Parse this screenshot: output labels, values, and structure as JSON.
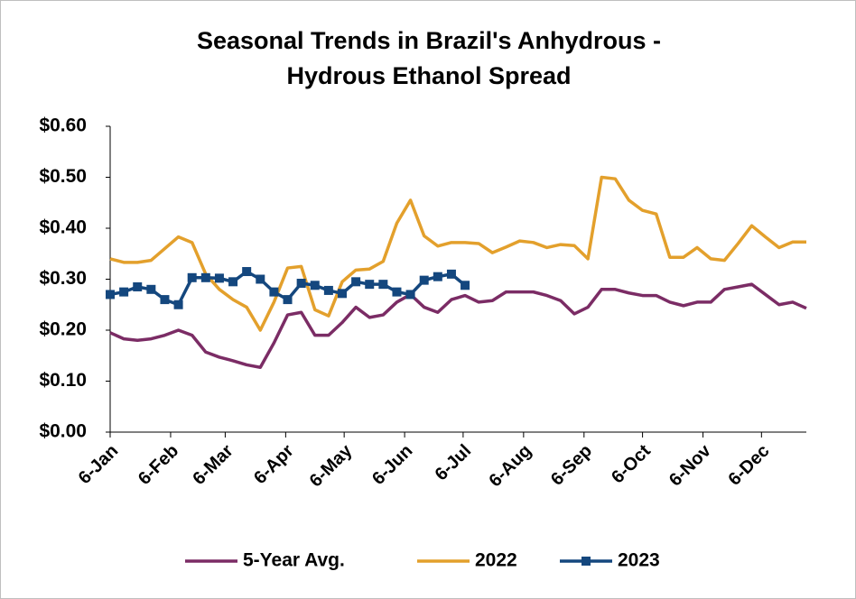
{
  "chart_data": {
    "type": "line",
    "title": [
      "Seasonal Trends in Brazil's Anhydrous -",
      "Hydrous Ethanol Spread"
    ],
    "x": [
      0,
      7,
      14,
      21,
      28,
      35,
      42,
      49,
      56,
      63,
      70,
      77,
      84,
      91,
      98,
      105,
      112,
      119,
      126,
      133,
      140,
      147,
      154,
      161,
      168,
      175,
      182,
      189,
      196,
      203,
      210,
      217,
      224,
      231,
      238,
      245,
      252,
      259,
      266,
      273,
      280,
      287,
      294,
      301,
      308,
      315,
      322,
      329,
      336,
      343,
      350,
      357
    ],
    "xlim": [
      0,
      357
    ],
    "xticks": [
      {
        "value": 0,
        "label": "6-Jan"
      },
      {
        "value": 31,
        "label": "6-Feb"
      },
      {
        "value": 59,
        "label": "6-Mar"
      },
      {
        "value": 90,
        "label": "6-Apr"
      },
      {
        "value": 120,
        "label": "6-May"
      },
      {
        "value": 151,
        "label": "6-Jun"
      },
      {
        "value": 181,
        "label": "6-Jul"
      },
      {
        "value": 212,
        "label": "6-Aug"
      },
      {
        "value": 243,
        "label": "6-Sep"
      },
      {
        "value": 273,
        "label": "6-Oct"
      },
      {
        "value": 304,
        "label": "6-Nov"
      },
      {
        "value": 334,
        "label": "6-Dec"
      }
    ],
    "ylim": [
      0,
      0.6
    ],
    "yticks": [
      {
        "value": 0,
        "label": "$0.00"
      },
      {
        "value": 0.1,
        "label": "$0.10"
      },
      {
        "value": 0.2,
        "label": "$0.20"
      },
      {
        "value": 0.3,
        "label": "$0.30"
      },
      {
        "value": 0.4,
        "label": "$0.40"
      },
      {
        "value": 0.5,
        "label": "$0.50"
      },
      {
        "value": 0.6,
        "label": "$0.60"
      }
    ],
    "grid": false,
    "legend": "bottom",
    "series": [
      {
        "name": "5-Year Avg.",
        "color": "#7b2c65",
        "marker": false,
        "values": [
          0.195,
          0.183,
          0.18,
          0.183,
          0.19,
          0.2,
          0.19,
          0.157,
          0.147,
          0.14,
          0.132,
          0.127,
          0.175,
          0.23,
          0.235,
          0.19,
          0.19,
          0.215,
          0.245,
          0.225,
          0.23,
          0.255,
          0.27,
          0.245,
          0.235,
          0.26,
          0.268,
          0.255,
          0.258,
          0.275,
          0.275,
          0.275,
          0.268,
          0.258,
          0.232,
          0.245,
          0.28,
          0.28,
          0.273,
          0.268,
          0.268,
          0.255,
          0.248,
          0.255,
          0.255,
          0.28,
          0.285,
          0.29,
          0.27,
          0.25,
          0.255,
          0.243
        ]
      },
      {
        "name": "2022",
        "color": "#e3a02c",
        "marker": false,
        "values": [
          0.34,
          0.333,
          0.333,
          0.337,
          0.36,
          0.383,
          0.372,
          0.31,
          0.28,
          0.26,
          0.245,
          0.2,
          0.255,
          0.322,
          0.325,
          0.24,
          0.228,
          0.295,
          0.318,
          0.32,
          0.335,
          0.41,
          0.455,
          0.385,
          0.365,
          0.372,
          0.372,
          0.37,
          0.352,
          0.363,
          0.375,
          0.372,
          0.362,
          0.368,
          0.366,
          0.34,
          0.5,
          0.497,
          0.455,
          0.435,
          0.428,
          0.343,
          0.343,
          0.362,
          0.34,
          0.337,
          0.37,
          0.405,
          0.383,
          0.362,
          0.373,
          0.373
        ]
      },
      {
        "name": "2023",
        "color": "#14477e",
        "marker": true,
        "values": [
          0.27,
          0.275,
          0.285,
          0.28,
          0.26,
          0.25,
          0.303,
          0.303,
          0.302,
          0.295,
          0.315,
          0.3,
          0.275,
          0.26,
          0.292,
          0.288,
          0.278,
          0.272,
          0.295,
          0.29,
          0.29,
          0.275,
          0.27,
          0.298,
          0.305,
          0.31,
          0.288,
          null,
          null,
          null,
          null,
          null,
          null,
          null,
          null,
          null,
          null,
          null,
          null,
          null,
          null,
          null,
          null,
          null,
          null,
          null,
          null,
          null,
          null,
          null,
          null,
          null
        ]
      }
    ]
  }
}
